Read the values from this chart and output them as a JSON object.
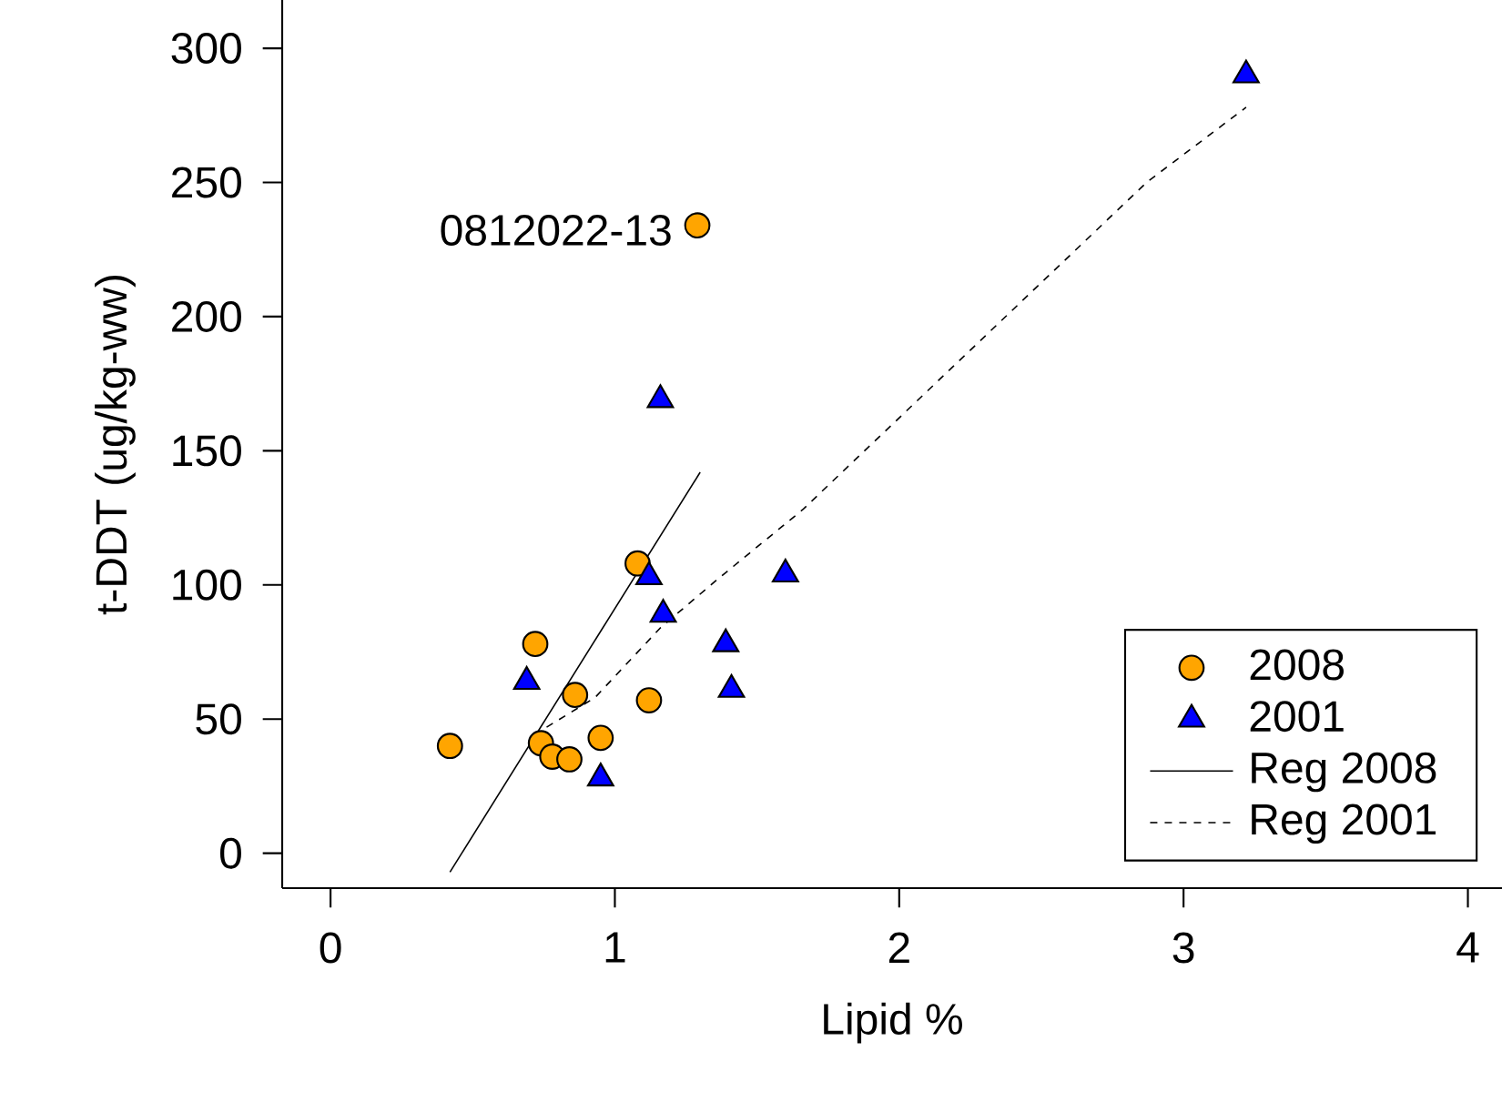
{
  "chart_data": {
    "type": "scatter",
    "xlabel": "Lipid %",
    "ylabel": "t-DDT (ug/kg-ww)",
    "xlim": [
      -0.17,
      4.12
    ],
    "ylim": [
      -13,
      318
    ],
    "xticks": [
      0,
      1,
      2,
      3,
      4
    ],
    "yticks": [
      0,
      50,
      100,
      150,
      200,
      250,
      300
    ],
    "grid": false,
    "legend": "bottom right",
    "annotations": [
      {
        "text": "0812022-13",
        "x": 1.29,
        "y": 234
      }
    ],
    "series": [
      {
        "name": "2008",
        "color": "#ffa500",
        "marker": "circle",
        "x": [
          0.42,
          0.72,
          0.86,
          0.74,
          0.78,
          0.84,
          0.95,
          1.12,
          1.08,
          1.29
        ],
        "values": [
          40,
          78,
          59,
          41,
          36,
          35,
          43,
          57,
          108,
          234
        ]
      },
      {
        "name": "2001",
        "color": "#0000ff",
        "marker": "triangle",
        "x": [
          0.69,
          0.95,
          1.12,
          1.17,
          1.16,
          1.39,
          1.41,
          1.6,
          3.22
        ],
        "values": [
          64,
          28,
          103,
          89,
          169,
          78,
          61,
          104,
          290
        ]
      },
      {
        "name": "Reg 2008",
        "type": "line",
        "color": "#000000",
        "marker": "none",
        "line_style": "solid",
        "x": [
          0.42,
          1.3
        ],
        "values": [
          -7,
          142
        ]
      },
      {
        "name": "Reg 2001",
        "type": "line",
        "color": "#000000",
        "marker": "none",
        "line_style": "dashed",
        "x": [
          0.76,
          0.93,
          1.16,
          1.36,
          1.66,
          2.87,
          3.22
        ],
        "values": [
          47,
          58,
          84,
          102,
          128,
          250,
          278
        ]
      }
    ]
  }
}
